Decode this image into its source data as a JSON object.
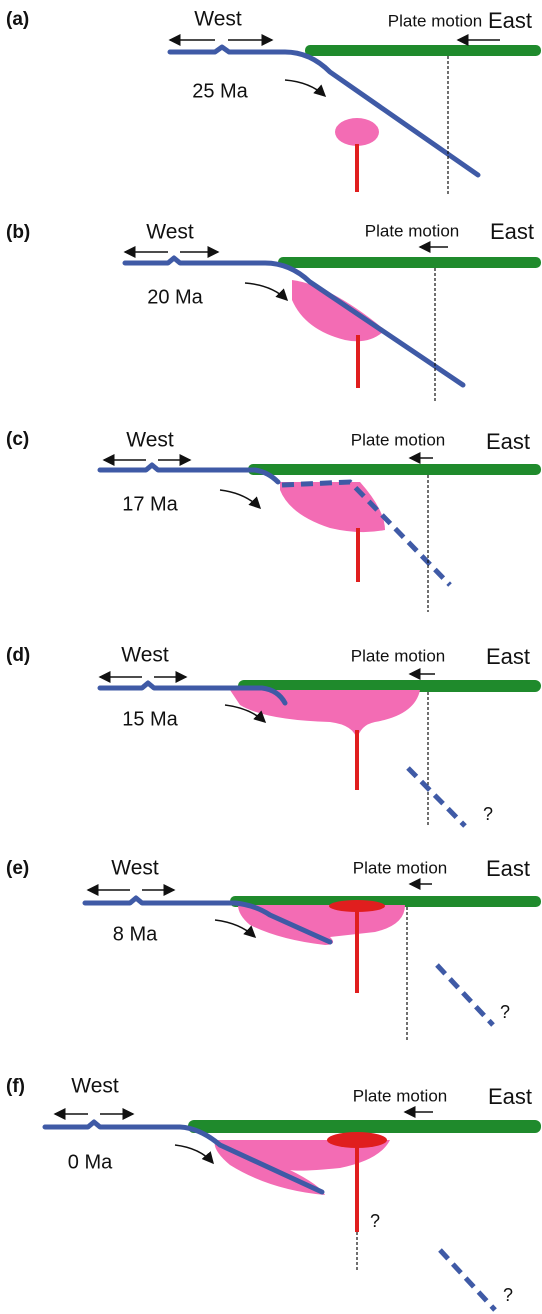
{
  "panels": [
    {
      "label": "(a)",
      "west": "West",
      "plate_motion": "Plate motion",
      "east": "East",
      "age": "25 Ma"
    },
    {
      "label": "(b)",
      "west": "West",
      "plate_motion": "Plate motion",
      "east": "East",
      "age": "20 Ma"
    },
    {
      "label": "(c)",
      "west": "West",
      "plate_motion": "Plate motion",
      "east": "East",
      "age": "17 Ma"
    },
    {
      "label": "(d)",
      "west": "West",
      "plate_motion": "Plate motion",
      "east": "East",
      "age": "15 Ma",
      "questions": [
        "?"
      ]
    },
    {
      "label": "(e)",
      "west": "West",
      "plate_motion": "Plate motion",
      "east": "East",
      "age": "8 Ma",
      "questions": [
        "?"
      ]
    },
    {
      "label": "(f)",
      "west": "West",
      "plate_motion": "Plate motion",
      "east": "East",
      "age": "0 Ma",
      "questions": [
        "?",
        "?"
      ]
    }
  ]
}
